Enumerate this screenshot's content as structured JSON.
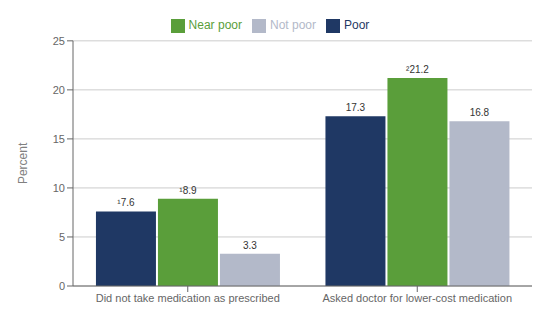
{
  "chart_data": {
    "type": "bar",
    "categories": [
      "Did not take medication as prescribed",
      "Asked doctor for lower-cost medication"
    ],
    "series": [
      {
        "name": "Poor",
        "color": "#1f3864",
        "values": [
          7.6,
          17.3
        ],
        "value_labels": [
          "¹7.6",
          "17.3"
        ]
      },
      {
        "name": "Near poor",
        "color": "#5a9e3a",
        "values": [
          8.9,
          21.2
        ],
        "value_labels": [
          "¹8.9",
          "²21.2"
        ]
      },
      {
        "name": "Not poor",
        "color": "#b3b9c9",
        "values": [
          3.3,
          16.8
        ],
        "value_labels": [
          "3.3",
          "16.8"
        ]
      }
    ],
    "ylabel": "Percent",
    "ylim": [
      0,
      25
    ],
    "yticks": [
      0,
      5,
      10,
      15,
      20,
      25
    ],
    "grid": true,
    "legend": "top",
    "data_labels": true
  }
}
